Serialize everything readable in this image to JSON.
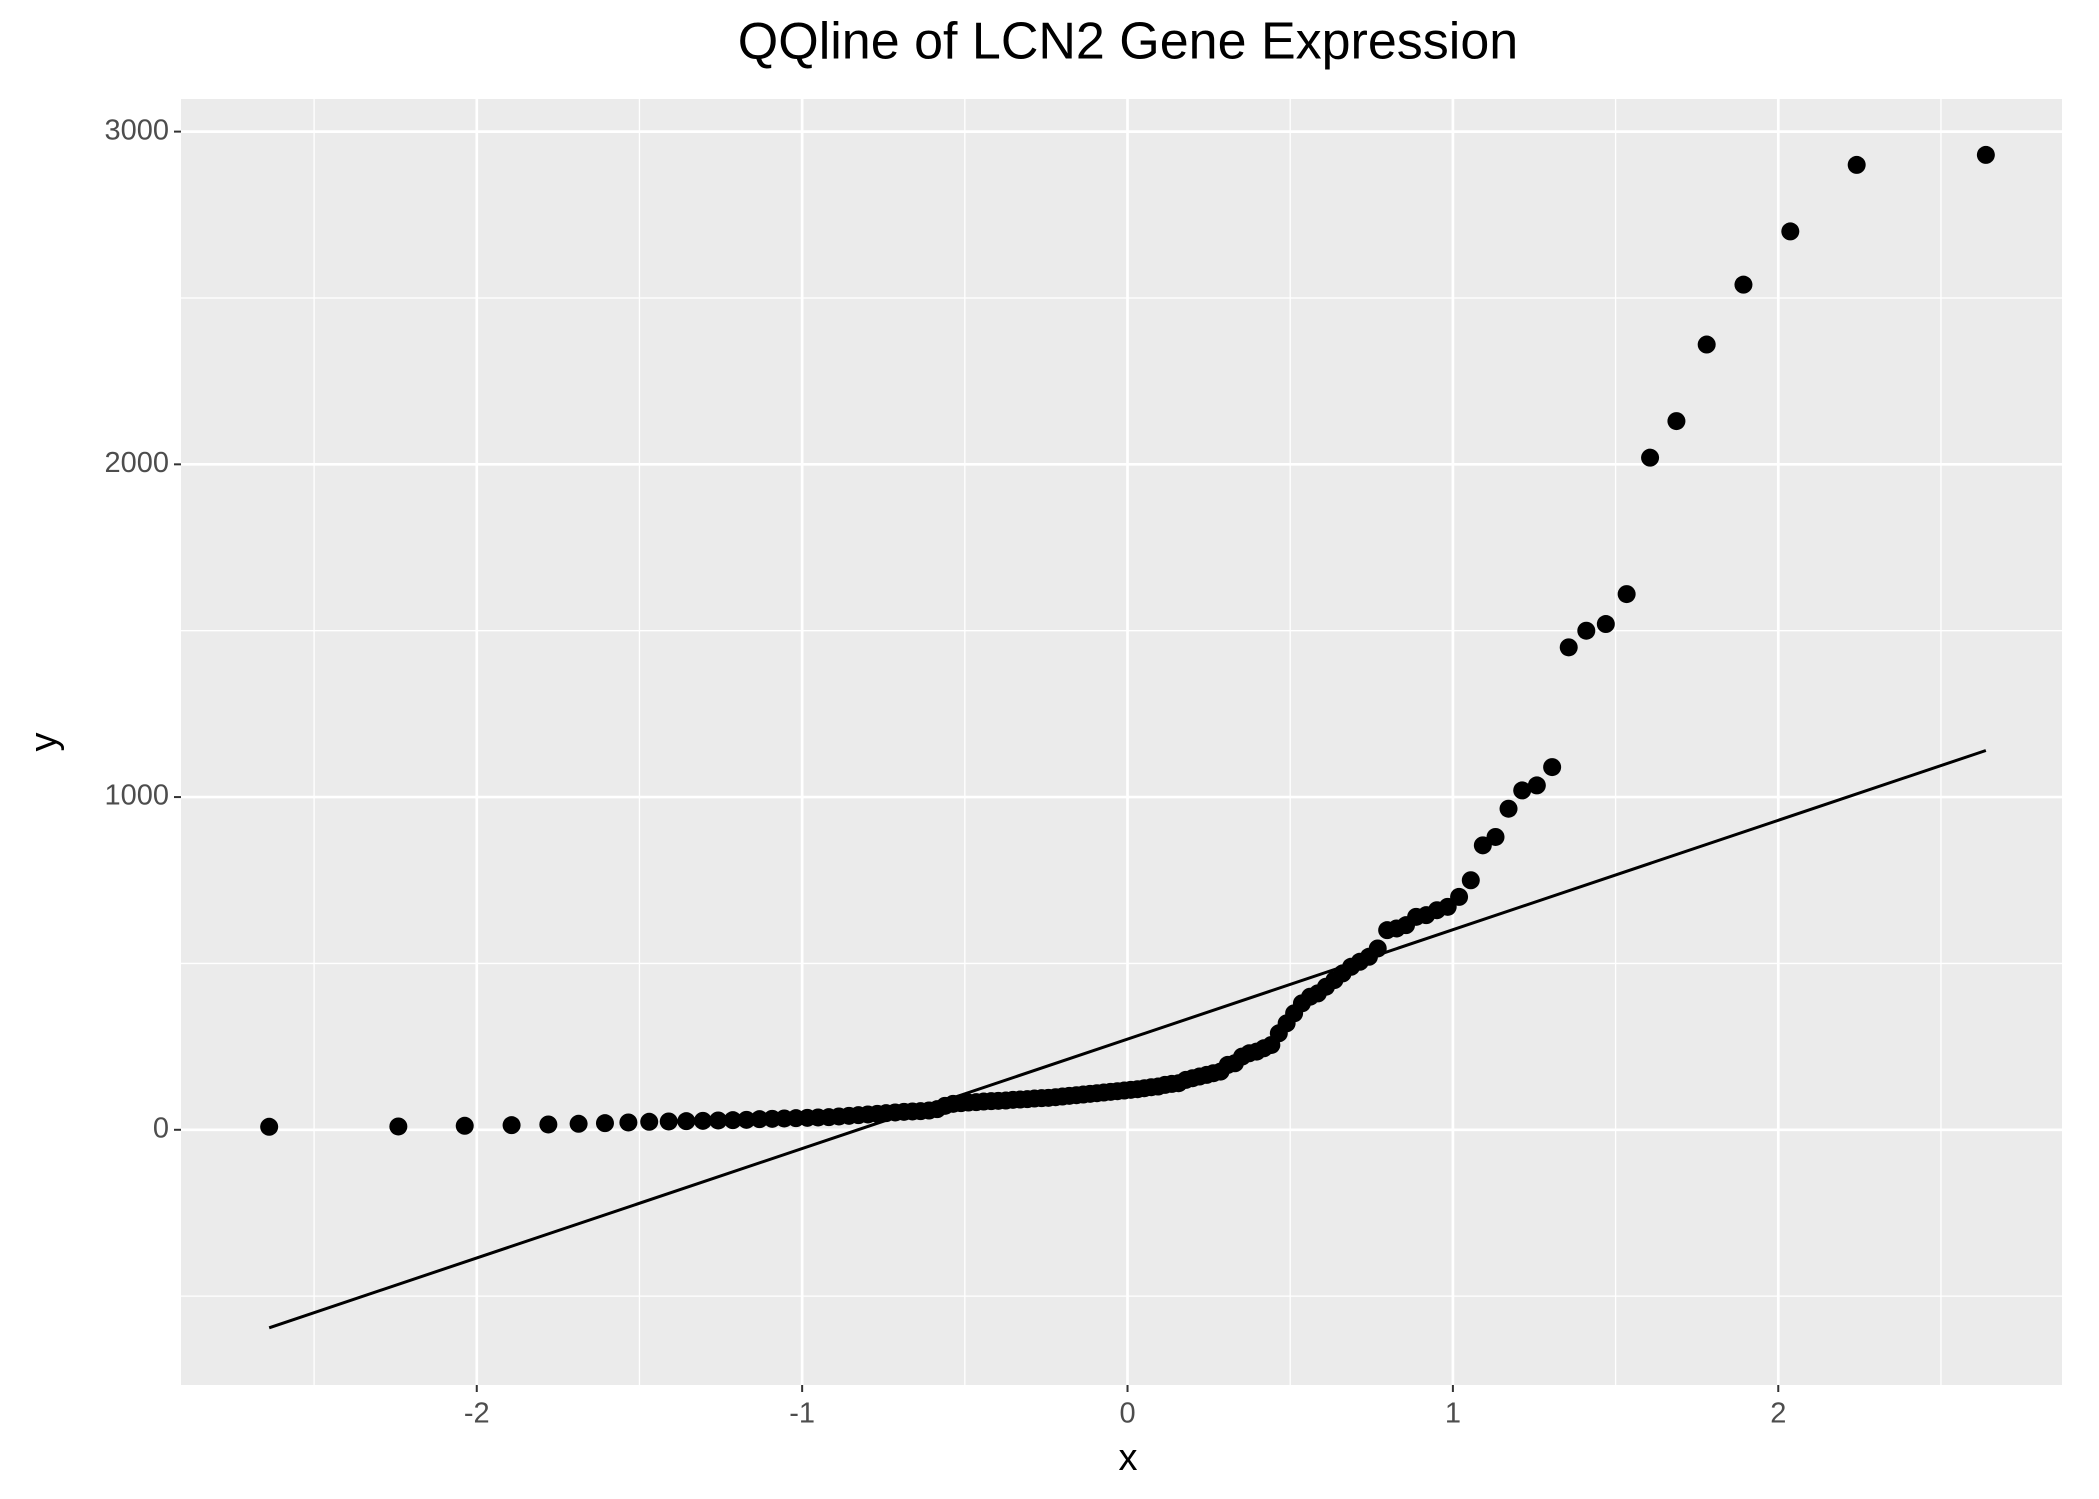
{
  "chart_data": {
    "type": "scatter",
    "title": "QQline of LCN2 Gene Expression",
    "xlabel": "x",
    "ylabel": "y",
    "color": "#000000",
    "x": [
      -2.638,
      -2.241,
      -2.037,
      -1.893,
      -1.78,
      -1.687,
      -1.606,
      -1.534,
      -1.47,
      -1.41,
      -1.356,
      -1.305,
      -1.258,
      -1.213,
      -1.171,
      -1.131,
      -1.092,
      -1.055,
      -1.019,
      -0.984,
      -0.951,
      -0.918,
      -0.887,
      -0.856,
      -0.827,
      -0.798,
      -0.769,
      -0.742,
      -0.714,
      -0.687,
      -0.661,
      -0.636,
      -0.61,
      -0.585,
      -0.561,
      -0.536,
      -0.512,
      -0.489,
      -0.465,
      -0.442,
      -0.419,
      -0.397,
      -0.374,
      -0.352,
      -0.33,
      -0.308,
      -0.286,
      -0.264,
      -0.243,
      -0.221,
      -0.2,
      -0.179,
      -0.157,
      -0.136,
      -0.115,
      -0.094,
      -0.073,
      -0.052,
      -0.031,
      -0.01,
      0.01,
      0.031,
      0.052,
      0.073,
      0.094,
      0.115,
      0.136,
      0.157,
      0.179,
      0.2,
      0.221,
      0.243,
      0.264,
      0.286,
      0.308,
      0.33,
      0.352,
      0.374,
      0.397,
      0.419,
      0.442,
      0.465,
      0.489,
      0.512,
      0.536,
      0.561,
      0.585,
      0.61,
      0.636,
      0.661,
      0.687,
      0.714,
      0.742,
      0.769,
      0.798,
      0.827,
      0.856,
      0.887,
      0.918,
      0.951,
      0.984,
      1.019,
      1.055,
      1.092,
      1.131,
      1.171,
      1.213,
      1.258,
      1.305,
      1.356,
      1.41,
      1.47,
      1.534,
      1.606,
      1.687,
      1.78,
      1.893,
      2.037,
      2.241,
      2.638
    ],
    "values": [
      9,
      10,
      12,
      14,
      16,
      18,
      20,
      22,
      24,
      25,
      26,
      27,
      28,
      29,
      30,
      32,
      33,
      34,
      35,
      36,
      37,
      38,
      40,
      42,
      44,
      46,
      48,
      50,
      52,
      54,
      55,
      56,
      58,
      62,
      72,
      78,
      80,
      82,
      83,
      85,
      86,
      87,
      88,
      90,
      91,
      92,
      94,
      95,
      96,
      98,
      100,
      102,
      104,
      106,
      108,
      110,
      112,
      114,
      116,
      118,
      120,
      122,
      125,
      128,
      130,
      135,
      138,
      140,
      150,
      155,
      160,
      165,
      170,
      175,
      195,
      200,
      220,
      230,
      235,
      245,
      255,
      290,
      320,
      350,
      380,
      400,
      410,
      430,
      450,
      470,
      490,
      505,
      520,
      545,
      600,
      605,
      615,
      640,
      645,
      660,
      670,
      700,
      750,
      855,
      880,
      965,
      1020,
      1035,
      1090,
      1450,
      1500,
      1520,
      1610,
      2020,
      2130,
      2360,
      2540,
      2700,
      2900,
      2930
    ],
    "line": {
      "x": [
        -2.638,
        2.638
      ],
      "values": [
        -595,
        1140
      ],
      "color": "#000000"
    },
    "xlim": [
      -2.909,
      2.872
    ],
    "ylim": [
      -767,
      3098
    ],
    "xticks": [
      -2,
      -1,
      0,
      1,
      2
    ],
    "yticks": [
      0,
      1000,
      2000,
      3000
    ],
    "minor_xticks": [
      -2.5,
      -1.5,
      -0.5,
      0.5,
      1.5,
      2.5
    ],
    "minor_yticks": [
      -500,
      500,
      1500,
      2500
    ],
    "grid": true
  }
}
